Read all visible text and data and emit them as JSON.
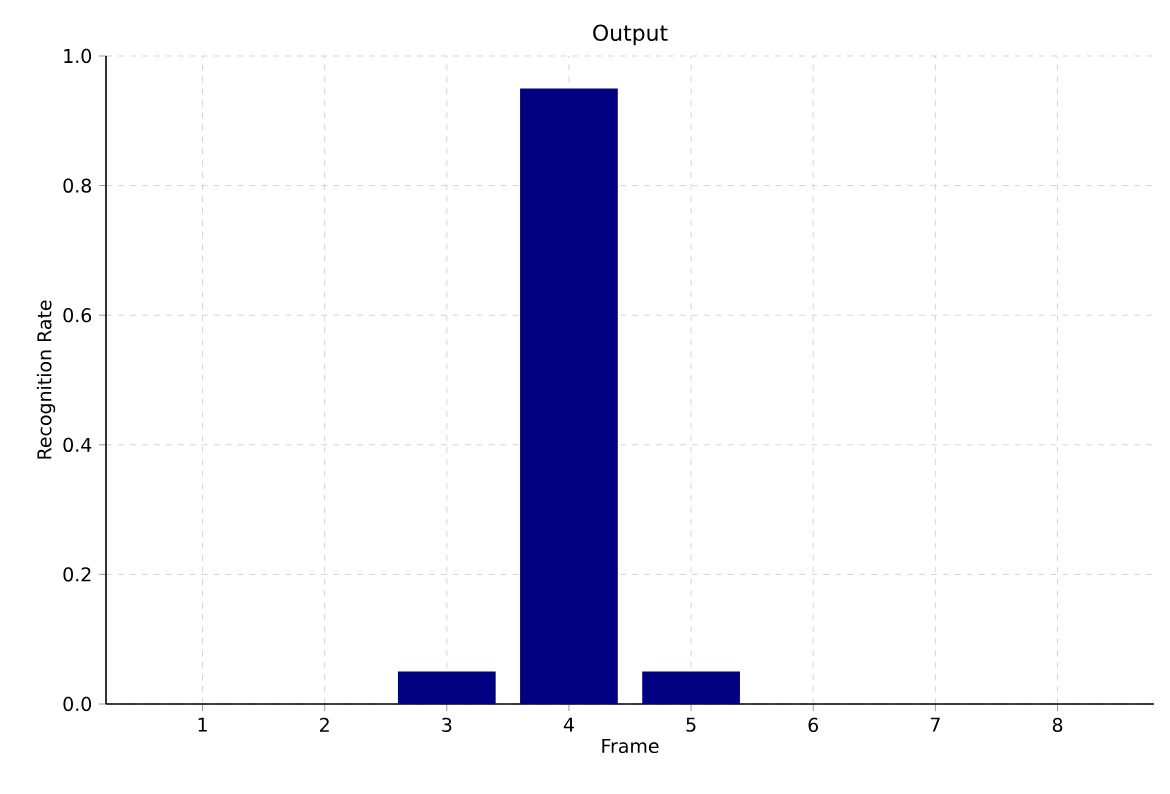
{
  "chart_data": {
    "type": "bar",
    "title": "Output",
    "xlabel": "Frame",
    "ylabel": "Recognition Rate",
    "categories": [
      "1",
      "2",
      "3",
      "4",
      "5",
      "6",
      "7",
      "8"
    ],
    "values": [
      0,
      0,
      0.05,
      0.95,
      0.05,
      0,
      0,
      0
    ],
    "color": "#000080",
    "ylim": [
      0,
      1
    ],
    "yticks": [
      {
        "value": 0,
        "label": "0.0"
      },
      {
        "value": 0.2,
        "label": "0.2"
      },
      {
        "value": 0.4,
        "label": "0.4"
      },
      {
        "value": 0.6,
        "label": "0.6"
      },
      {
        "value": 0.8,
        "label": "0.8"
      },
      {
        "value": 1,
        "label": "1.0"
      }
    ],
    "grid": true
  }
}
